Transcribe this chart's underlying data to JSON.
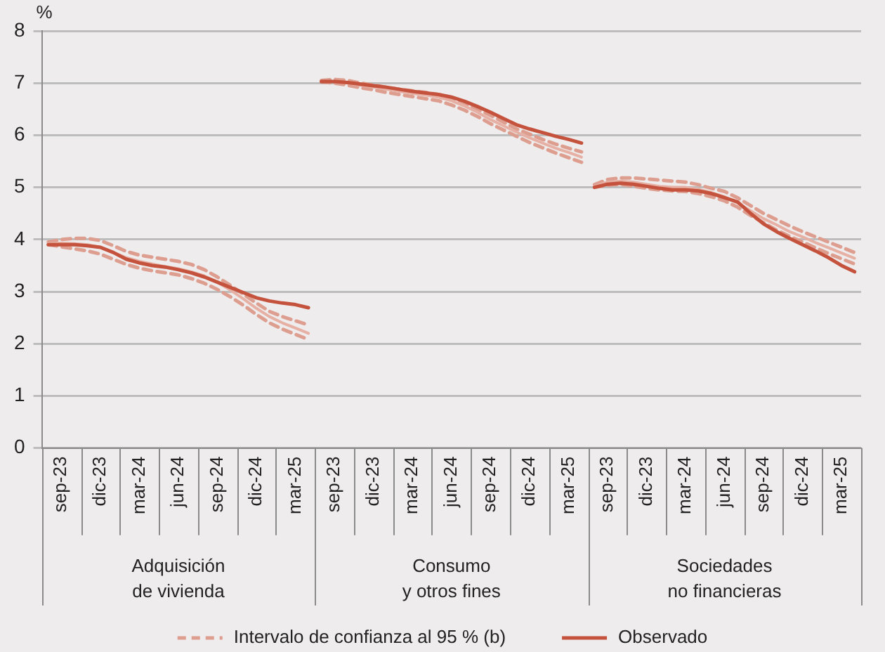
{
  "chart_data": {
    "type": "line",
    "ylabel": "%",
    "ylim": [
      0,
      8
    ],
    "yticks": [
      0,
      1,
      2,
      3,
      4,
      5,
      6,
      7,
      8
    ],
    "grid": "y",
    "legend": "bottom",
    "marker": "none",
    "categories": [
      null,
      "sep-23",
      null,
      null,
      "dic-23",
      null,
      null,
      "mar-24",
      null,
      null,
      "jun-24",
      null,
      null,
      "sep-24",
      null,
      null,
      "dic-24",
      null,
      null,
      "mar-25",
      null,
      null,
      "sep-23",
      null,
      null,
      "dic-23",
      null,
      null,
      "mar-24",
      null,
      null,
      "jun-24",
      null,
      null,
      "sep-24",
      null,
      null,
      "dic-24",
      null,
      null,
      "mar-25",
      null,
      null,
      "sep-23",
      null,
      null,
      "dic-23",
      null,
      null,
      "mar-24",
      null,
      null,
      "jun-24",
      null,
      null,
      "sep-24",
      null,
      null,
      "dic-24",
      null,
      null,
      "mar-25",
      null
    ],
    "annotations": [
      "Adquisición de vivienda",
      "Consumo y otros fines",
      "Sociedades no financieras"
    ],
    "series": [
      {
        "name": "Intervalo de confianza al 95 % (b)",
        "color": "#dd9e90",
        "line_style": "dashed",
        "values": [
          3.95,
          4.0,
          4.02,
          4.02,
          3.98,
          3.88,
          3.77,
          3.7,
          3.66,
          3.62,
          3.58,
          3.52,
          3.42,
          3.28,
          3.12,
          2.95,
          2.78,
          2.62,
          2.52,
          2.44,
          2.36,
          null,
          null,
          null,
          null,
          null,
          null,
          null,
          null,
          null,
          null,
          null,
          null,
          null,
          null,
          null,
          null,
          null,
          null,
          null,
          null,
          null,
          null,
          null,
          null,
          null,
          null,
          null,
          null,
          null,
          null,
          null,
          null,
          null,
          null,
          null,
          null,
          null,
          null,
          null,
          null,
          null,
          null
        ]
      },
      {
        "color": "#dd9e90",
        "line_style": "dashed",
        "values": [
          3.9,
          3.86,
          3.82,
          3.78,
          3.72,
          3.62,
          3.52,
          3.45,
          3.4,
          3.36,
          3.32,
          3.25,
          3.16,
          3.04,
          2.9,
          2.74,
          2.56,
          2.4,
          2.28,
          2.18,
          2.08,
          null,
          null,
          null,
          null,
          null,
          null,
          null,
          null,
          null,
          null,
          null,
          null,
          null,
          null,
          null,
          null,
          null,
          null,
          null,
          null,
          null,
          null,
          null,
          null,
          null,
          null,
          null,
          null,
          null,
          null,
          null,
          null,
          null,
          null,
          null,
          null,
          null,
          null,
          null,
          null,
          null,
          null
        ]
      },
      {
        "color": "#e6b0a4",
        "line_style": "solid",
        "values": [
          3.92,
          3.93,
          3.92,
          3.9,
          3.85,
          3.75,
          3.65,
          3.58,
          3.53,
          3.48,
          3.44,
          3.38,
          3.3,
          3.18,
          3.03,
          2.86,
          2.68,
          2.52,
          2.4,
          2.3,
          2.2,
          null,
          null,
          null,
          null,
          null,
          null,
          null,
          null,
          null,
          null,
          null,
          null,
          null,
          null,
          null,
          null,
          null,
          null,
          null,
          null,
          null,
          null,
          null,
          null,
          null,
          null,
          null,
          null,
          null,
          null,
          null,
          null,
          null,
          null,
          null,
          null,
          null,
          null,
          null,
          null,
          null,
          null
        ]
      },
      {
        "name": "Observado",
        "color": "#c4523d",
        "line_style": "solid",
        "values": [
          3.9,
          3.9,
          3.9,
          3.88,
          3.85,
          3.75,
          3.62,
          3.55,
          3.5,
          3.47,
          3.42,
          3.36,
          3.28,
          3.18,
          3.08,
          2.98,
          2.88,
          2.82,
          2.78,
          2.75,
          2.69,
          null,
          null,
          null,
          null,
          null,
          null,
          null,
          null,
          null,
          null,
          null,
          null,
          null,
          null,
          null,
          null,
          null,
          null,
          null,
          null,
          null,
          null,
          null,
          null,
          null,
          null,
          null,
          null,
          null,
          null,
          null,
          null,
          null,
          null,
          null,
          null,
          null,
          null,
          null,
          null,
          null,
          null
        ]
      },
      {
        "color": "#dd9e90",
        "line_style": "dashed",
        "values": [
          null,
          null,
          null,
          null,
          null,
          null,
          null,
          null,
          null,
          null,
          null,
          null,
          null,
          null,
          null,
          null,
          null,
          null,
          null,
          null,
          null,
          7.05,
          7.07,
          7.05,
          7.0,
          6.96,
          6.92,
          6.88,
          6.85,
          6.82,
          6.78,
          6.72,
          6.62,
          6.5,
          6.38,
          6.25,
          6.12,
          6.02,
          5.92,
          5.83,
          5.75,
          5.68,
          null,
          null,
          null,
          null,
          null,
          null,
          null,
          null,
          null,
          null,
          null,
          null,
          null,
          null,
          null,
          null,
          null,
          null,
          null,
          null,
          null
        ]
      },
      {
        "color": "#dd9e90",
        "line_style": "dashed",
        "values": [
          null,
          null,
          null,
          null,
          null,
          null,
          null,
          null,
          null,
          null,
          null,
          null,
          null,
          null,
          null,
          null,
          null,
          null,
          null,
          null,
          null,
          7.02,
          7.0,
          6.96,
          6.91,
          6.87,
          6.82,
          6.78,
          6.74,
          6.7,
          6.66,
          6.58,
          6.48,
          6.36,
          6.22,
          6.1,
          5.98,
          5.86,
          5.76,
          5.66,
          5.57,
          5.48,
          null,
          null,
          null,
          null,
          null,
          null,
          null,
          null,
          null,
          null,
          null,
          null,
          null,
          null,
          null,
          null,
          null,
          null,
          null,
          null,
          null
        ]
      },
      {
        "color": "#e6b0a4",
        "line_style": "solid",
        "values": [
          null,
          null,
          null,
          null,
          null,
          null,
          null,
          null,
          null,
          null,
          null,
          null,
          null,
          null,
          null,
          null,
          null,
          null,
          null,
          null,
          null,
          7.03,
          7.03,
          7.0,
          6.96,
          6.92,
          6.88,
          6.84,
          6.8,
          6.77,
          6.73,
          6.66,
          6.56,
          6.44,
          6.3,
          6.18,
          6.06,
          5.95,
          5.85,
          5.75,
          5.67,
          5.58,
          null,
          null,
          null,
          null,
          null,
          null,
          null,
          null,
          null,
          null,
          null,
          null,
          null,
          null,
          null,
          null,
          null,
          null,
          null,
          null,
          null
        ]
      },
      {
        "color": "#c4523d",
        "line_style": "solid",
        "values": [
          null,
          null,
          null,
          null,
          null,
          null,
          null,
          null,
          null,
          null,
          null,
          null,
          null,
          null,
          null,
          null,
          null,
          null,
          null,
          null,
          null,
          7.03,
          7.03,
          7.01,
          6.98,
          6.95,
          6.92,
          6.88,
          6.84,
          6.81,
          6.78,
          6.73,
          6.65,
          6.55,
          6.44,
          6.32,
          6.2,
          6.12,
          6.05,
          5.98,
          5.92,
          5.85,
          null,
          null,
          null,
          null,
          null,
          null,
          null,
          null,
          null,
          null,
          null,
          null,
          null,
          null,
          null,
          null,
          null,
          null,
          null,
          null,
          null
        ]
      },
      {
        "color": "#dd9e90",
        "line_style": "dashed",
        "values": [
          null,
          null,
          null,
          null,
          null,
          null,
          null,
          null,
          null,
          null,
          null,
          null,
          null,
          null,
          null,
          null,
          null,
          null,
          null,
          null,
          null,
          null,
          null,
          null,
          null,
          null,
          null,
          null,
          null,
          null,
          null,
          null,
          null,
          null,
          null,
          null,
          null,
          null,
          null,
          null,
          null,
          null,
          5.05,
          5.15,
          5.18,
          5.18,
          5.16,
          5.14,
          5.12,
          5.1,
          5.05,
          4.98,
          4.92,
          4.8,
          4.65,
          4.5,
          4.38,
          4.26,
          4.15,
          4.05,
          3.95,
          3.85,
          3.75
        ]
      },
      {
        "color": "#dd9e90",
        "line_style": "dashed",
        "values": [
          null,
          null,
          null,
          null,
          null,
          null,
          null,
          null,
          null,
          null,
          null,
          null,
          null,
          null,
          null,
          null,
          null,
          null,
          null,
          null,
          null,
          null,
          null,
          null,
          null,
          null,
          null,
          null,
          null,
          null,
          null,
          null,
          null,
          null,
          null,
          null,
          null,
          null,
          null,
          null,
          null,
          null,
          5.0,
          5.04,
          5.06,
          5.02,
          4.98,
          4.95,
          4.93,
          4.92,
          4.88,
          4.82,
          4.74,
          4.62,
          4.46,
          4.32,
          4.18,
          4.06,
          3.95,
          3.84,
          3.73,
          3.63,
          3.53
        ]
      },
      {
        "color": "#e6b0a4",
        "line_style": "solid",
        "values": [
          null,
          null,
          null,
          null,
          null,
          null,
          null,
          null,
          null,
          null,
          null,
          null,
          null,
          null,
          null,
          null,
          null,
          null,
          null,
          null,
          null,
          null,
          null,
          null,
          null,
          null,
          null,
          null,
          null,
          null,
          null,
          null,
          null,
          null,
          null,
          null,
          null,
          null,
          null,
          null,
          null,
          null,
          5.02,
          5.1,
          5.12,
          5.1,
          5.06,
          5.02,
          5.0,
          5.0,
          4.96,
          4.9,
          4.82,
          4.7,
          4.55,
          4.4,
          4.28,
          4.15,
          4.05,
          3.94,
          3.84,
          3.74,
          3.64
        ]
      },
      {
        "color": "#c4523d",
        "line_style": "solid",
        "values": [
          null,
          null,
          null,
          null,
          null,
          null,
          null,
          null,
          null,
          null,
          null,
          null,
          null,
          null,
          null,
          null,
          null,
          null,
          null,
          null,
          null,
          null,
          null,
          null,
          null,
          null,
          null,
          null,
          null,
          null,
          null,
          null,
          null,
          null,
          null,
          null,
          null,
          null,
          null,
          null,
          null,
          null,
          5.0,
          5.06,
          5.08,
          5.06,
          5.02,
          4.98,
          4.95,
          4.95,
          4.93,
          4.88,
          4.8,
          4.72,
          4.5,
          4.3,
          4.15,
          4.02,
          3.9,
          3.78,
          3.65,
          3.5,
          3.38
        ]
      }
    ]
  }
}
